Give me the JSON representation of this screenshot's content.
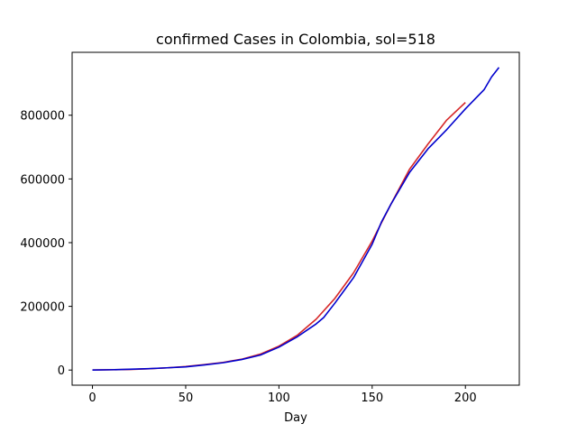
{
  "chart_data": {
    "type": "line",
    "title": "confirmed Cases in Colombia, sol=518",
    "xlabel": "Day",
    "ylabel": "",
    "xlim": [
      -10.9,
      228.9
    ],
    "ylim": [
      -47500,
      997500
    ],
    "xticks": [
      0,
      50,
      100,
      150,
      200
    ],
    "yticks": [
      0,
      200000,
      400000,
      600000,
      800000
    ],
    "ytick_labels": [
      "0",
      "200000",
      "400000",
      "600000",
      "800000"
    ],
    "xtick_labels": [
      "0",
      "50",
      "100",
      "150",
      "200"
    ],
    "grid": false,
    "series": [
      {
        "color": "#d62728",
        "x": [
          0,
          10,
          20,
          30,
          40,
          50,
          60,
          70,
          80,
          90,
          100,
          110,
          120,
          130,
          140,
          150,
          160,
          170,
          180,
          190,
          200
        ],
        "y": [
          0,
          1000,
          2000,
          4000,
          7000,
          11000,
          17000,
          24000,
          34000,
          50000,
          75000,
          110000,
          160000,
          225000,
          305000,
          405000,
          520000,
          630000,
          710000,
          785000,
          840000
        ]
      },
      {
        "color": "#0000cd",
        "x": [
          0,
          10,
          20,
          30,
          40,
          50,
          60,
          70,
          80,
          90,
          100,
          110,
          115,
          120,
          124,
          130,
          140,
          150,
          155,
          160,
          170,
          180,
          190,
          200,
          205,
          210,
          214,
          218
        ],
        "y": [
          0,
          1000,
          2500,
          4500,
          7000,
          10000,
          16000,
          23000,
          33000,
          47000,
          72000,
          105000,
          125000,
          145000,
          165000,
          210000,
          290000,
          395000,
          465000,
          520000,
          620000,
          695000,
          755000,
          820000,
          850000,
          880000,
          920000,
          950000
        ]
      }
    ]
  }
}
